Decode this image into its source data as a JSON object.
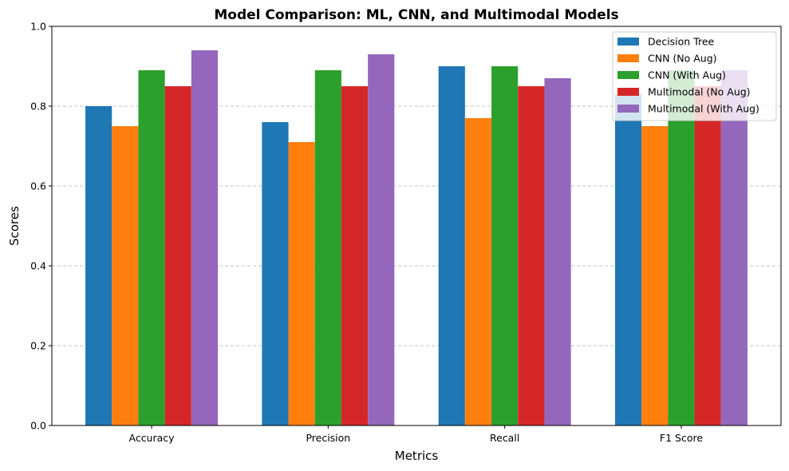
{
  "chart_data": {
    "type": "bar",
    "title": "Model Comparison: ML, CNN, and Multimodal Models",
    "xlabel": "Metrics",
    "ylabel": "Scores",
    "categories": [
      "Accuracy",
      "Precision",
      "Recall",
      "F1 Score"
    ],
    "series": [
      {
        "name": "Decision Tree",
        "color": "#1f77b4",
        "values": [
          0.8,
          0.76,
          0.9,
          0.83
        ]
      },
      {
        "name": "CNN (No Aug)",
        "color": "#ff7f0e",
        "values": [
          0.75,
          0.71,
          0.77,
          0.75
        ]
      },
      {
        "name": "CNN (With Aug)",
        "color": "#2ca02c",
        "values": [
          0.89,
          0.89,
          0.9,
          0.89
        ]
      },
      {
        "name": "Multimodal (No Aug)",
        "color": "#d62728",
        "values": [
          0.85,
          0.85,
          0.85,
          0.85
        ]
      },
      {
        "name": "Multimodal (With Aug)",
        "color": "#9467bd",
        "values": [
          0.94,
          0.93,
          0.87,
          0.89
        ]
      }
    ],
    "ylim": [
      0,
      1.0
    ],
    "yticks": [
      "0.0",
      "0.2",
      "0.4",
      "0.6",
      "0.8",
      "1.0"
    ],
    "grid": "y-dashed",
    "legend_position": "top-right"
  }
}
